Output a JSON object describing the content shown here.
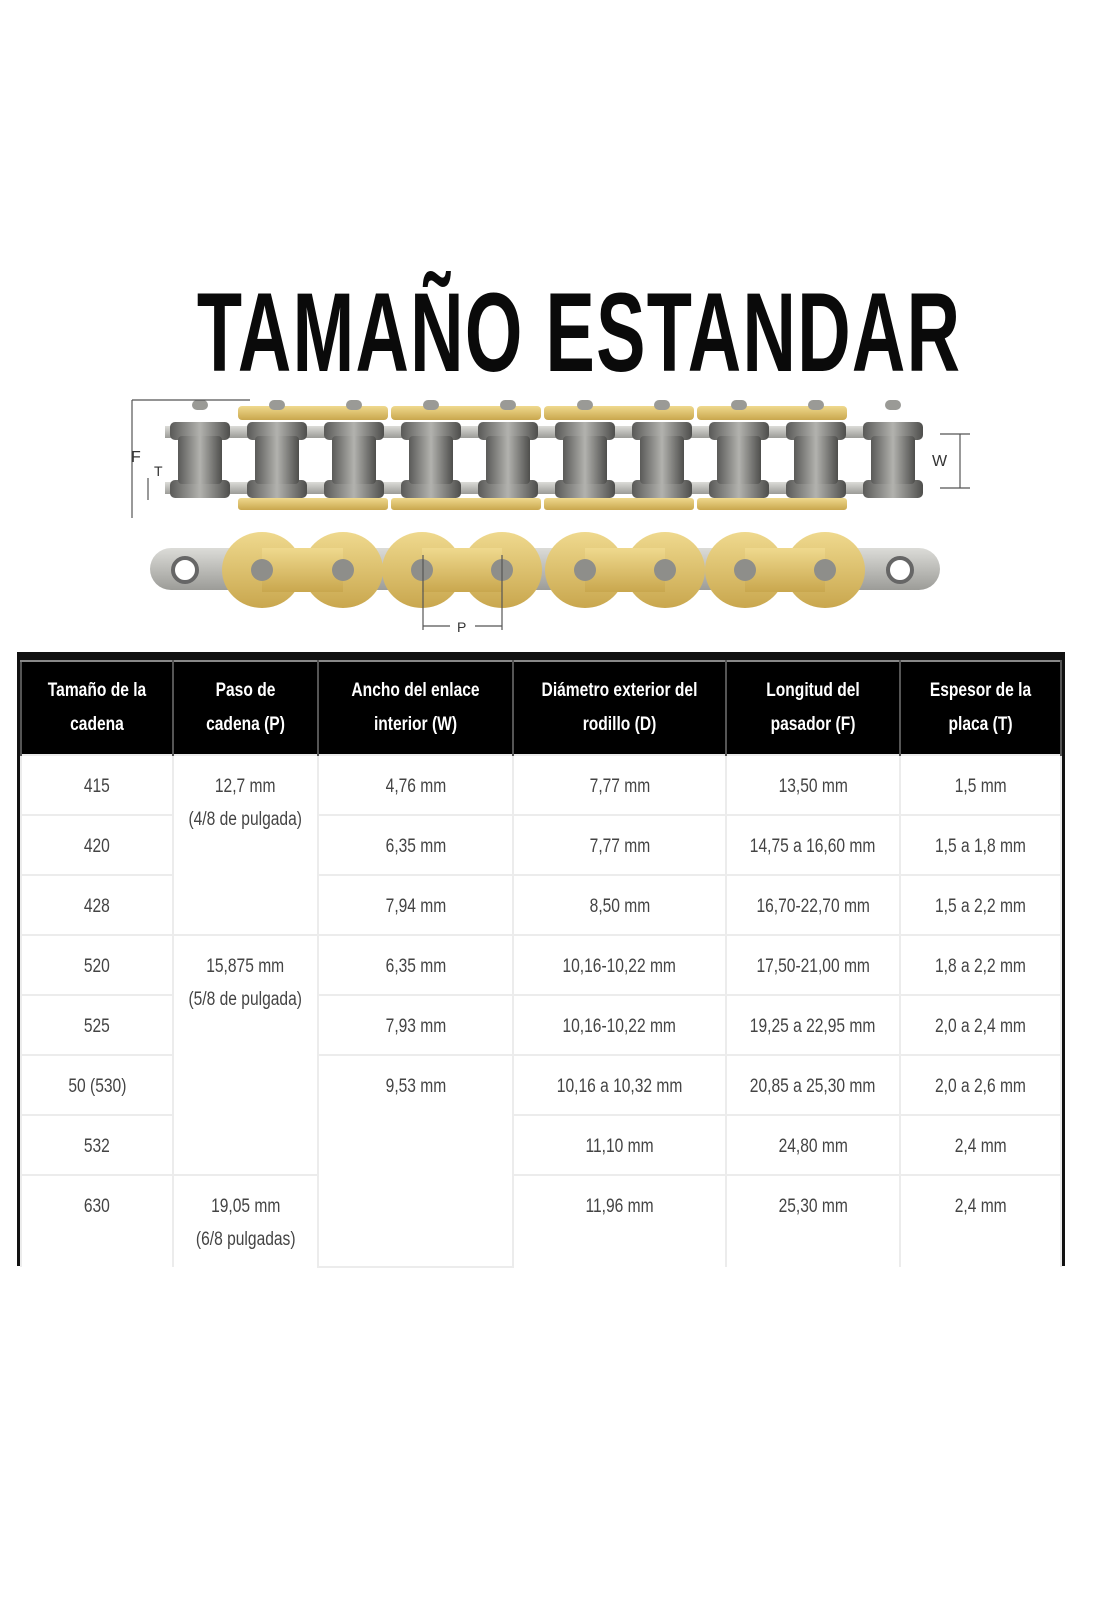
{
  "title": "TAMAÑO ESTANDAR",
  "diagram": {
    "labels": {
      "F": "F",
      "T": "T",
      "W": "W",
      "P": "P"
    },
    "colors": {
      "gold": "#d9bd6a",
      "steel": "#8a8a88"
    }
  },
  "table": {
    "headers": [
      "Tamaño de la cadena",
      "Paso de cadena (P)",
      "Ancho del enlace interior (W)",
      "Diámetro exterior del rodillo (D)",
      "Longitud del pasador (F)",
      "Espesor de la placa (T)"
    ],
    "rows": [
      [
        {
          "v": "415"
        },
        {
          "v": "12,7 mm\n(4/8 de pulgada)",
          "rowspan": 3
        },
        {
          "v": "4,76 mm"
        },
        {
          "v": "7,77 mm"
        },
        {
          "v": "13,50 mm"
        },
        {
          "v": "1,5 mm"
        }
      ],
      [
        {
          "v": "420"
        },
        {
          "v": "6,35 mm"
        },
        {
          "v": "7,77 mm"
        },
        {
          "v": "14,75 a 16,60 mm"
        },
        {
          "v": "1,5 a 1,8 mm"
        }
      ],
      [
        {
          "v": "428"
        },
        {
          "v": "7,94 mm"
        },
        {
          "v": "8,50 mm"
        },
        {
          "v": "16,70-22,70 mm"
        },
        {
          "v": "1,5 a 2,2 mm"
        }
      ],
      [
        {
          "v": "520"
        },
        {
          "v": "15,875 mm\n(5/8 de pulgada)",
          "rowspan": 4
        },
        {
          "v": "6,35 mm"
        },
        {
          "v": "10,16-10,22 mm"
        },
        {
          "v": "17,50-21,00 mm"
        },
        {
          "v": "1,8 a 2,2 mm"
        }
      ],
      [
        {
          "v": "525"
        },
        {
          "v": "7,93 mm"
        },
        {
          "v": "10,16-10,22 mm"
        },
        {
          "v": "19,25 a 22,95 mm"
        },
        {
          "v": "2,0 a 2,4 mm"
        }
      ],
      [
        {
          "v": "50 (530)"
        },
        {
          "v": "9,53 mm",
          "rowspan": 3
        },
        {
          "v": "10,16 a 10,32 mm"
        },
        {
          "v": "20,85 a 25,30 mm"
        },
        {
          "v": "2,0 a 2,6 mm"
        }
      ],
      [
        {
          "v": "532"
        },
        {
          "v": "11,10 mm"
        },
        {
          "v": "24,80 mm"
        },
        {
          "v": "2,4 mm"
        }
      ],
      [
        {
          "v": "630"
        },
        {
          "v": "19,05 mm\n(6/8 pulgadas)"
        },
        {
          "v": "11,96 mm"
        },
        {
          "v": "25,30 mm"
        },
        {
          "v": "2,4 mm"
        }
      ]
    ]
  }
}
